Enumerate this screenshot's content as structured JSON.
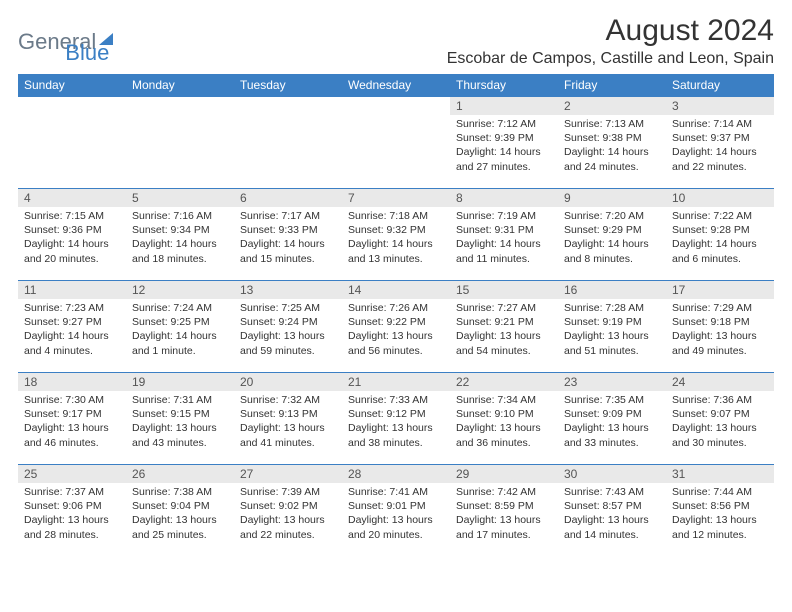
{
  "logo": {
    "part1": "General",
    "part2": "Blue"
  },
  "title": "August 2024",
  "location": "Escobar de Campos, Castille and Leon, Spain",
  "headers": [
    "Sunday",
    "Monday",
    "Tuesday",
    "Wednesday",
    "Thursday",
    "Friday",
    "Saturday"
  ],
  "colors": {
    "header_bg": "#3b7fc4",
    "header_text": "#ffffff",
    "daynum_bg": "#e9e9e9",
    "border": "#3b7fc4",
    "logo_gray": "#6b7a89",
    "logo_blue": "#3b7fc4",
    "text": "#333333",
    "background": "#ffffff"
  },
  "weeks": [
    [
      {
        "day": "",
        "sunrise": "",
        "sunset": "",
        "daylight": ""
      },
      {
        "day": "",
        "sunrise": "",
        "sunset": "",
        "daylight": ""
      },
      {
        "day": "",
        "sunrise": "",
        "sunset": "",
        "daylight": ""
      },
      {
        "day": "",
        "sunrise": "",
        "sunset": "",
        "daylight": ""
      },
      {
        "day": "1",
        "sunrise": "Sunrise: 7:12 AM",
        "sunset": "Sunset: 9:39 PM",
        "daylight": "Daylight: 14 hours and 27 minutes."
      },
      {
        "day": "2",
        "sunrise": "Sunrise: 7:13 AM",
        "sunset": "Sunset: 9:38 PM",
        "daylight": "Daylight: 14 hours and 24 minutes."
      },
      {
        "day": "3",
        "sunrise": "Sunrise: 7:14 AM",
        "sunset": "Sunset: 9:37 PM",
        "daylight": "Daylight: 14 hours and 22 minutes."
      }
    ],
    [
      {
        "day": "4",
        "sunrise": "Sunrise: 7:15 AM",
        "sunset": "Sunset: 9:36 PM",
        "daylight": "Daylight: 14 hours and 20 minutes."
      },
      {
        "day": "5",
        "sunrise": "Sunrise: 7:16 AM",
        "sunset": "Sunset: 9:34 PM",
        "daylight": "Daylight: 14 hours and 18 minutes."
      },
      {
        "day": "6",
        "sunrise": "Sunrise: 7:17 AM",
        "sunset": "Sunset: 9:33 PM",
        "daylight": "Daylight: 14 hours and 15 minutes."
      },
      {
        "day": "7",
        "sunrise": "Sunrise: 7:18 AM",
        "sunset": "Sunset: 9:32 PM",
        "daylight": "Daylight: 14 hours and 13 minutes."
      },
      {
        "day": "8",
        "sunrise": "Sunrise: 7:19 AM",
        "sunset": "Sunset: 9:31 PM",
        "daylight": "Daylight: 14 hours and 11 minutes."
      },
      {
        "day": "9",
        "sunrise": "Sunrise: 7:20 AM",
        "sunset": "Sunset: 9:29 PM",
        "daylight": "Daylight: 14 hours and 8 minutes."
      },
      {
        "day": "10",
        "sunrise": "Sunrise: 7:22 AM",
        "sunset": "Sunset: 9:28 PM",
        "daylight": "Daylight: 14 hours and 6 minutes."
      }
    ],
    [
      {
        "day": "11",
        "sunrise": "Sunrise: 7:23 AM",
        "sunset": "Sunset: 9:27 PM",
        "daylight": "Daylight: 14 hours and 4 minutes."
      },
      {
        "day": "12",
        "sunrise": "Sunrise: 7:24 AM",
        "sunset": "Sunset: 9:25 PM",
        "daylight": "Daylight: 14 hours and 1 minute."
      },
      {
        "day": "13",
        "sunrise": "Sunrise: 7:25 AM",
        "sunset": "Sunset: 9:24 PM",
        "daylight": "Daylight: 13 hours and 59 minutes."
      },
      {
        "day": "14",
        "sunrise": "Sunrise: 7:26 AM",
        "sunset": "Sunset: 9:22 PM",
        "daylight": "Daylight: 13 hours and 56 minutes."
      },
      {
        "day": "15",
        "sunrise": "Sunrise: 7:27 AM",
        "sunset": "Sunset: 9:21 PM",
        "daylight": "Daylight: 13 hours and 54 minutes."
      },
      {
        "day": "16",
        "sunrise": "Sunrise: 7:28 AM",
        "sunset": "Sunset: 9:19 PM",
        "daylight": "Daylight: 13 hours and 51 minutes."
      },
      {
        "day": "17",
        "sunrise": "Sunrise: 7:29 AM",
        "sunset": "Sunset: 9:18 PM",
        "daylight": "Daylight: 13 hours and 49 minutes."
      }
    ],
    [
      {
        "day": "18",
        "sunrise": "Sunrise: 7:30 AM",
        "sunset": "Sunset: 9:17 PM",
        "daylight": "Daylight: 13 hours and 46 minutes."
      },
      {
        "day": "19",
        "sunrise": "Sunrise: 7:31 AM",
        "sunset": "Sunset: 9:15 PM",
        "daylight": "Daylight: 13 hours and 43 minutes."
      },
      {
        "day": "20",
        "sunrise": "Sunrise: 7:32 AM",
        "sunset": "Sunset: 9:13 PM",
        "daylight": "Daylight: 13 hours and 41 minutes."
      },
      {
        "day": "21",
        "sunrise": "Sunrise: 7:33 AM",
        "sunset": "Sunset: 9:12 PM",
        "daylight": "Daylight: 13 hours and 38 minutes."
      },
      {
        "day": "22",
        "sunrise": "Sunrise: 7:34 AM",
        "sunset": "Sunset: 9:10 PM",
        "daylight": "Daylight: 13 hours and 36 minutes."
      },
      {
        "day": "23",
        "sunrise": "Sunrise: 7:35 AM",
        "sunset": "Sunset: 9:09 PM",
        "daylight": "Daylight: 13 hours and 33 minutes."
      },
      {
        "day": "24",
        "sunrise": "Sunrise: 7:36 AM",
        "sunset": "Sunset: 9:07 PM",
        "daylight": "Daylight: 13 hours and 30 minutes."
      }
    ],
    [
      {
        "day": "25",
        "sunrise": "Sunrise: 7:37 AM",
        "sunset": "Sunset: 9:06 PM",
        "daylight": "Daylight: 13 hours and 28 minutes."
      },
      {
        "day": "26",
        "sunrise": "Sunrise: 7:38 AM",
        "sunset": "Sunset: 9:04 PM",
        "daylight": "Daylight: 13 hours and 25 minutes."
      },
      {
        "day": "27",
        "sunrise": "Sunrise: 7:39 AM",
        "sunset": "Sunset: 9:02 PM",
        "daylight": "Daylight: 13 hours and 22 minutes."
      },
      {
        "day": "28",
        "sunrise": "Sunrise: 7:41 AM",
        "sunset": "Sunset: 9:01 PM",
        "daylight": "Daylight: 13 hours and 20 minutes."
      },
      {
        "day": "29",
        "sunrise": "Sunrise: 7:42 AM",
        "sunset": "Sunset: 8:59 PM",
        "daylight": "Daylight: 13 hours and 17 minutes."
      },
      {
        "day": "30",
        "sunrise": "Sunrise: 7:43 AM",
        "sunset": "Sunset: 8:57 PM",
        "daylight": "Daylight: 13 hours and 14 minutes."
      },
      {
        "day": "31",
        "sunrise": "Sunrise: 7:44 AM",
        "sunset": "Sunset: 8:56 PM",
        "daylight": "Daylight: 13 hours and 12 minutes."
      }
    ]
  ]
}
